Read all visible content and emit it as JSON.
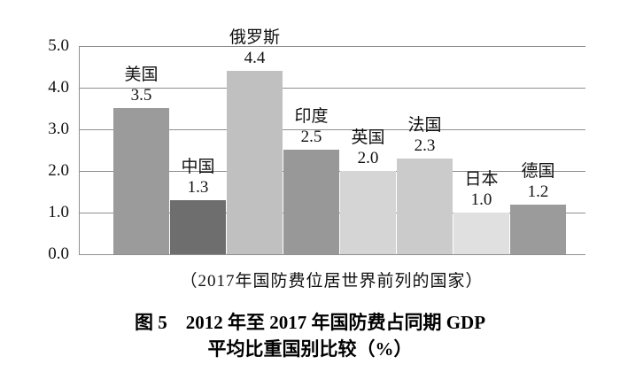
{
  "figure": {
    "caption": "（2017年国防费位居世界前列的国家）",
    "title_line1": "图 5　2012 年至 2017 年国防费占同期 GDP",
    "title_line2": "平均比重国别比较（%）"
  },
  "chart_data": {
    "type": "bar",
    "title": "图 5 2012 年至 2017 年国防费占同期 GDP 平均比重国别比较（%）",
    "annotation": "（2017年国防费位居世界前列的国家）",
    "categories": [
      "美国",
      "中国",
      "俄罗斯",
      "印度",
      "英国",
      "法国",
      "日本",
      "德国"
    ],
    "values": [
      3.5,
      1.3,
      4.4,
      2.5,
      2.0,
      2.3,
      1.0,
      1.2
    ],
    "value_labels": [
      "3.5",
      "1.3",
      "4.4",
      "2.5",
      "2.0",
      "2.3",
      "1.0",
      "1.2"
    ],
    "bar_colors": [
      "#9b9b9b",
      "#6e6e6e",
      "#c1c0c0",
      "#999898",
      "#d6d5d5",
      "#cccbcb",
      "#e0e0e0",
      "#9b9b9b"
    ],
    "xlabel": "",
    "ylabel": "",
    "ylim": [
      0,
      5
    ],
    "ytick_labels": [
      "0.0",
      "1.0",
      "2.0",
      "3.0",
      "4.0",
      "5.0"
    ],
    "grid": true,
    "legend": "none"
  },
  "colors": {
    "axis": "#8f8f8f",
    "grid": "#8f8f8f",
    "bar_dark": "#6e6e6e",
    "bar_medium": "#9b9b9b",
    "bar_light": "#c1c0c0",
    "text": "#111111",
    "background": "#ffffff"
  }
}
